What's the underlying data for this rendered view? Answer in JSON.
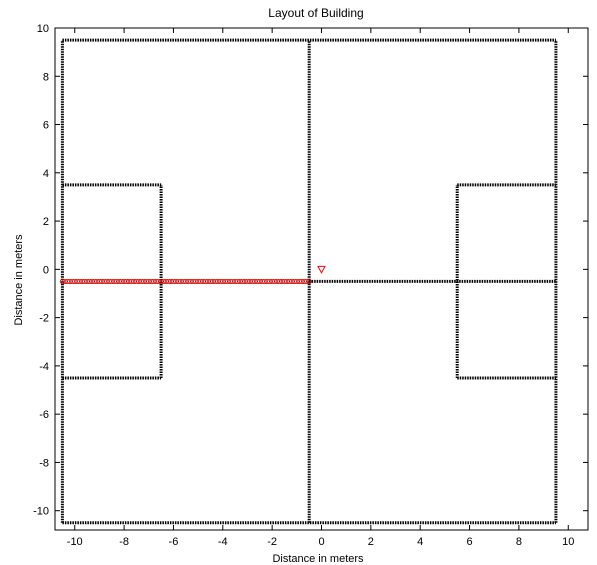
{
  "chart_data": {
    "type": "scatter",
    "title": "Layout of Building",
    "xlabel": "Distance in meters",
    "ylabel": "Distance in meters",
    "xlim": [
      -10.8,
      10.8
    ],
    "ylim": [
      -10.8,
      10
    ],
    "xticks": [
      -10,
      -8,
      -6,
      -4,
      -2,
      0,
      2,
      4,
      6,
      8,
      10
    ],
    "yticks": [
      -10,
      -8,
      -6,
      -4,
      -2,
      0,
      2,
      4,
      6,
      8,
      10
    ],
    "grid": false,
    "walls": [
      {
        "x1": -10.5,
        "y1": -10.5,
        "x2": 9.5,
        "y2": -10.5
      },
      {
        "x1": -10.5,
        "y1": 9.5,
        "x2": 9.5,
        "y2": 9.5
      },
      {
        "x1": -10.5,
        "y1": -10.5,
        "x2": -10.5,
        "y2": 9.5
      },
      {
        "x1": 9.5,
        "y1": -10.5,
        "x2": 9.5,
        "y2": 9.5
      },
      {
        "x1": -0.5,
        "y1": -10.5,
        "x2": -0.5,
        "y2": 9.5
      },
      {
        "x1": -0.5,
        "y1": -0.5,
        "x2": 9.5,
        "y2": -0.5
      },
      {
        "x1": -10.5,
        "y1": 3.5,
        "x2": -6.5,
        "y2": 3.5
      },
      {
        "x1": -10.5,
        "y1": -4.5,
        "x2": -6.5,
        "y2": -4.5
      },
      {
        "x1": -6.5,
        "y1": -4.5,
        "x2": -6.5,
        "y2": 3.5
      },
      {
        "x1": 5.5,
        "y1": 3.5,
        "x2": 9.5,
        "y2": 3.5
      },
      {
        "x1": 5.5,
        "y1": -4.5,
        "x2": 9.5,
        "y2": -4.5
      },
      {
        "x1": 5.5,
        "y1": -4.5,
        "x2": 5.5,
        "y2": 3.5
      }
    ],
    "highlighted_segment": {
      "x1": -10.5,
      "y1": -0.5,
      "x2": -0.5,
      "y2": -0.5,
      "color": "#cc0000"
    },
    "marker": {
      "x": 0,
      "y": 0,
      "shape": "triangle-down",
      "color": "#ff0000"
    },
    "wall_color": "#000000"
  }
}
